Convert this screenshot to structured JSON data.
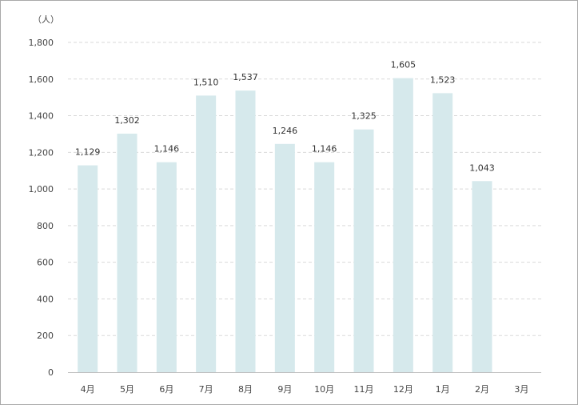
{
  "chart_data": {
    "type": "bar",
    "unit_label": "（人）",
    "categories": [
      "4月",
      "5月",
      "6月",
      "7月",
      "8月",
      "9月",
      "10月",
      "11月",
      "12月",
      "1月",
      "2月",
      "3月"
    ],
    "values": [
      1129,
      1302,
      1146,
      1510,
      1537,
      1246,
      1146,
      1325,
      1605,
      1523,
      1043,
      null
    ],
    "value_labels": [
      "1,129",
      "1,302",
      "1,146",
      "1,510",
      "1,537",
      "1,246",
      "1,146",
      "1,325",
      "1,605",
      "1,523",
      "1,043",
      ""
    ],
    "yticks": [
      0,
      200,
      400,
      600,
      800,
      1000,
      1200,
      1400,
      1600,
      1800
    ],
    "ytick_labels": [
      "0",
      "200",
      "400",
      "600",
      "800",
      "1,000",
      "1,200",
      "1,400",
      "1,600",
      "1,800"
    ],
    "ylim": [
      0,
      1800
    ],
    "grid": true,
    "bar_color": "#d6e9ec"
  }
}
